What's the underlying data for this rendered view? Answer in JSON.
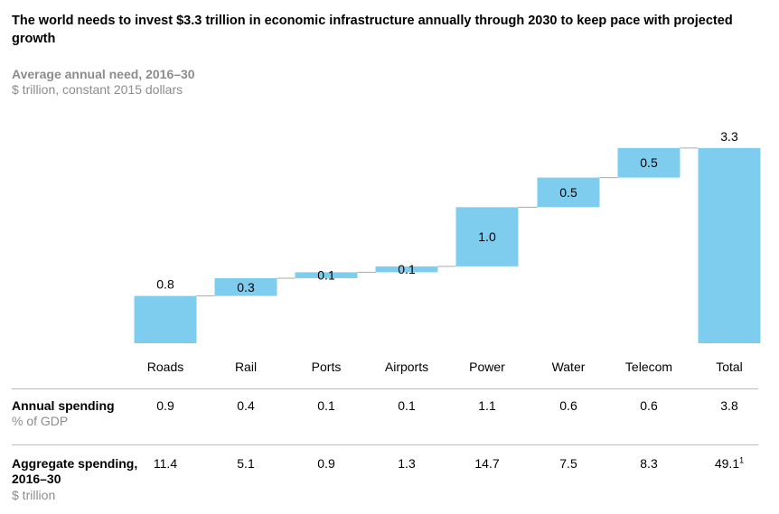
{
  "header": {
    "title": "The world needs to invest $3.3 trillion in economic infrastructure annually through 2030 to keep pace with projected growth",
    "subtitle": "Average annual need, 2016–30",
    "unit": "$ trillion, constant 2015 dollars"
  },
  "colors": {
    "bar": "#7fcdee",
    "connector": "#aaaaaa",
    "rule": "#bdbdbd",
    "muted": "#8c8c8c"
  },
  "chart_data": {
    "type": "waterfall",
    "categories": [
      "Roads",
      "Rail",
      "Ports",
      "Airports",
      "Power",
      "Water",
      "Telecom",
      "Total"
    ],
    "values": [
      0.8,
      0.3,
      0.1,
      0.1,
      1.0,
      0.5,
      0.5,
      3.3
    ],
    "value_labels": [
      "0.8",
      "0.3",
      "0.1",
      "0.1",
      "1.0",
      "0.5",
      "0.5",
      "3.3"
    ],
    "total_index": 7
  },
  "table": {
    "rows": [
      {
        "label": "Annual spending",
        "sublabel": "% of GDP",
        "values": [
          "0.9",
          "0.4",
          "0.1",
          "0.1",
          "1.1",
          "0.6",
          "0.6",
          "3.8"
        ]
      },
      {
        "label": "Aggregate spending, 2016–30",
        "sublabel": "$ trillion",
        "values": [
          "11.4",
          "5.1",
          "0.9",
          "1.3",
          "14.7",
          "7.5",
          "8.3",
          "49.1"
        ],
        "last_footnote": "1"
      }
    ]
  }
}
